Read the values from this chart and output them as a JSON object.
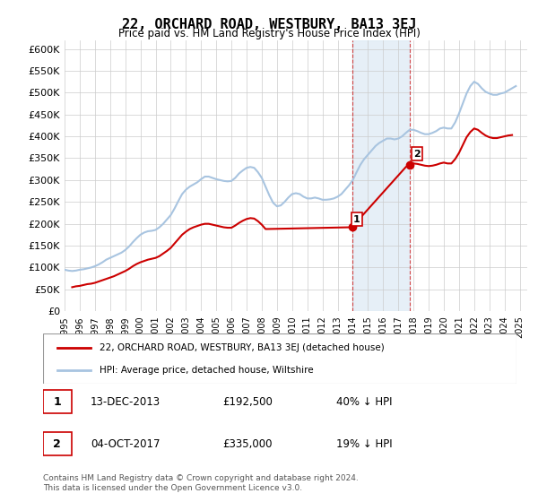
{
  "title": "22, ORCHARD ROAD, WESTBURY, BA13 3EJ",
  "subtitle": "Price paid vs. HM Land Registry's House Price Index (HPI)",
  "ylabel_ticks": [
    "£0",
    "£50K",
    "£100K",
    "£150K",
    "£200K",
    "£250K",
    "£300K",
    "£350K",
    "£400K",
    "£450K",
    "£500K",
    "£550K",
    "£600K"
  ],
  "ytick_values": [
    0,
    50000,
    100000,
    150000,
    200000,
    250000,
    300000,
    350000,
    400000,
    450000,
    500000,
    550000,
    600000
  ],
  "ylim": [
    0,
    620000
  ],
  "xlim_start": 1995.0,
  "xlim_end": 2025.5,
  "hpi_color": "#a8c4e0",
  "price_color": "#cc0000",
  "marker1_date": 2013.95,
  "marker1_price": 192500,
  "marker2_date": 2017.75,
  "marker2_price": 335000,
  "legend_house_label": "22, ORCHARD ROAD, WESTBURY, BA13 3EJ (detached house)",
  "legend_hpi_label": "HPI: Average price, detached house, Wiltshire",
  "annotation1_label": "1",
  "annotation1_date": "13-DEC-2013",
  "annotation1_price": "£192,500",
  "annotation1_pct": "40% ↓ HPI",
  "annotation2_label": "2",
  "annotation2_date": "04-OCT-2017",
  "annotation2_price": "£335,000",
  "annotation2_pct": "19% ↓ HPI",
  "footer": "Contains HM Land Registry data © Crown copyright and database right 2024.\nThis data is licensed under the Open Government Licence v3.0.",
  "background_shading_start": 2013.95,
  "background_shading_end": 2017.75,
  "hpi_data_x": [
    1995.0,
    1995.25,
    1995.5,
    1995.75,
    1996.0,
    1996.25,
    1996.5,
    1996.75,
    1997.0,
    1997.25,
    1997.5,
    1997.75,
    1998.0,
    1998.25,
    1998.5,
    1998.75,
    1999.0,
    1999.25,
    1999.5,
    1999.75,
    2000.0,
    2000.25,
    2000.5,
    2000.75,
    2001.0,
    2001.25,
    2001.5,
    2001.75,
    2002.0,
    2002.25,
    2002.5,
    2002.75,
    2003.0,
    2003.25,
    2003.5,
    2003.75,
    2004.0,
    2004.25,
    2004.5,
    2004.75,
    2005.0,
    2005.25,
    2005.5,
    2005.75,
    2006.0,
    2006.25,
    2006.5,
    2006.75,
    2007.0,
    2007.25,
    2007.5,
    2007.75,
    2008.0,
    2008.25,
    2008.5,
    2008.75,
    2009.0,
    2009.25,
    2009.5,
    2009.75,
    2010.0,
    2010.25,
    2010.5,
    2010.75,
    2011.0,
    2011.25,
    2011.5,
    2011.75,
    2012.0,
    2012.25,
    2012.5,
    2012.75,
    2013.0,
    2013.25,
    2013.5,
    2013.75,
    2014.0,
    2014.25,
    2014.5,
    2014.75,
    2015.0,
    2015.25,
    2015.5,
    2015.75,
    2016.0,
    2016.25,
    2016.5,
    2016.75,
    2017.0,
    2017.25,
    2017.5,
    2017.75,
    2018.0,
    2018.25,
    2018.5,
    2018.75,
    2019.0,
    2019.25,
    2019.5,
    2019.75,
    2020.0,
    2020.25,
    2020.5,
    2020.75,
    2021.0,
    2021.25,
    2021.5,
    2021.75,
    2022.0,
    2022.25,
    2022.5,
    2022.75,
    2023.0,
    2023.25,
    2023.5,
    2023.75,
    2024.0,
    2024.25,
    2024.5,
    2024.75
  ],
  "hpi_data_y": [
    95000,
    93000,
    92000,
    93000,
    95000,
    96000,
    98000,
    100000,
    103000,
    107000,
    112000,
    118000,
    122000,
    126000,
    130000,
    134000,
    140000,
    148000,
    158000,
    167000,
    175000,
    180000,
    183000,
    184000,
    186000,
    192000,
    200000,
    210000,
    220000,
    235000,
    252000,
    268000,
    278000,
    285000,
    290000,
    295000,
    302000,
    308000,
    308000,
    305000,
    302000,
    300000,
    298000,
    297000,
    298000,
    305000,
    315000,
    322000,
    328000,
    330000,
    328000,
    318000,
    305000,
    285000,
    265000,
    248000,
    240000,
    242000,
    250000,
    260000,
    268000,
    270000,
    268000,
    262000,
    258000,
    258000,
    260000,
    258000,
    255000,
    255000,
    256000,
    258000,
    262000,
    268000,
    278000,
    288000,
    300000,
    318000,
    335000,
    348000,
    358000,
    368000,
    378000,
    385000,
    390000,
    395000,
    395000,
    393000,
    395000,
    400000,
    408000,
    415000,
    415000,
    412000,
    408000,
    405000,
    405000,
    408000,
    412000,
    418000,
    420000,
    418000,
    418000,
    432000,
    452000,
    475000,
    498000,
    515000,
    525000,
    520000,
    510000,
    502000,
    498000,
    495000,
    495000,
    498000,
    500000,
    505000,
    510000,
    515000
  ],
  "price_data_x": [
    1995.5,
    1995.75,
    1996.0,
    1996.25,
    1996.5,
    1996.75,
    1997.0,
    1997.25,
    1997.5,
    1997.75,
    1998.0,
    1998.25,
    1998.5,
    1998.75,
    1999.0,
    1999.25,
    1999.5,
    1999.75,
    2000.0,
    2000.25,
    2000.5,
    2000.75,
    2001.0,
    2001.25,
    2001.5,
    2001.75,
    2002.0,
    2002.25,
    2002.5,
    2002.75,
    2003.0,
    2003.25,
    2003.5,
    2003.75,
    2004.0,
    2004.25,
    2004.5,
    2004.75,
    2005.0,
    2005.25,
    2005.5,
    2005.75,
    2006.0,
    2006.25,
    2006.5,
    2006.75,
    2007.0,
    2007.25,
    2007.5,
    2007.75,
    2008.0,
    2008.25,
    2013.75,
    2013.95,
    2017.5,
    2017.75,
    2018.0,
    2018.25,
    2018.5,
    2018.75,
    2019.0,
    2019.25,
    2019.5,
    2019.75,
    2020.0,
    2020.25,
    2020.5,
    2020.75,
    2021.0,
    2021.25,
    2021.5,
    2021.75,
    2022.0,
    2022.25,
    2022.5,
    2022.75,
    2023.0,
    2023.25,
    2023.5,
    2023.75,
    2024.0,
    2024.25,
    2024.5
  ],
  "price_data_y": [
    55000,
    57000,
    58000,
    60000,
    62000,
    63000,
    65000,
    68000,
    71000,
    74000,
    77000,
    80000,
    84000,
    88000,
    92000,
    97000,
    103000,
    108000,
    112000,
    115000,
    118000,
    120000,
    122000,
    126000,
    132000,
    138000,
    145000,
    155000,
    165000,
    175000,
    182000,
    188000,
    192000,
    195000,
    198000,
    200000,
    200000,
    198000,
    196000,
    194000,
    192000,
    191000,
    191000,
    196000,
    202000,
    207000,
    211000,
    213000,
    212000,
    206000,
    198000,
    188000,
    192000,
    192500,
    330000,
    335000,
    338000,
    337000,
    335000,
    333000,
    332000,
    333000,
    335000,
    338000,
    340000,
    338000,
    338000,
    348000,
    362000,
    380000,
    398000,
    410000,
    418000,
    415000,
    408000,
    402000,
    398000,
    396000,
    396000,
    398000,
    400000,
    402000,
    403000
  ]
}
